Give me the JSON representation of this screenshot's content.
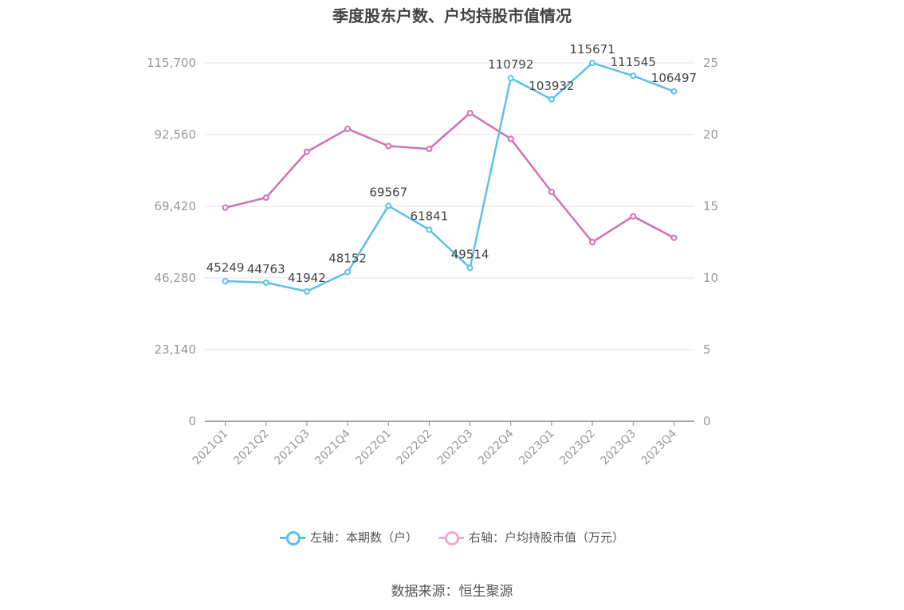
{
  "title": "季度股东户数、户均持股市值情况",
  "source": "数据来源：恒生聚源",
  "legend": {
    "left_label": "左轴：本期数（户）",
    "right_label": "右轴：户均持股市值（万元）"
  },
  "colors": {
    "left_series": "#5bc0eb",
    "right_series": "#d36fb3",
    "right_series_legend": "#f0a8d0",
    "grid": "#e0e3f0",
    "axis": "#888888",
    "tick_text": "#999999",
    "label_text": "#444444"
  },
  "chart_data": {
    "type": "line",
    "categories": [
      "2021Q1",
      "2021Q2",
      "2021Q3",
      "2021Q4",
      "2022Q1",
      "2022Q2",
      "2022Q3",
      "2022Q4",
      "2023Q1",
      "2023Q2",
      "2023Q3",
      "2023Q4"
    ],
    "left_axis": {
      "min": 0,
      "max": 115700,
      "ticks": [
        "0",
        "23,140",
        "46,280",
        "69,420",
        "92,560",
        "115,700"
      ]
    },
    "right_axis": {
      "min": 0,
      "max": 25,
      "ticks": [
        "0",
        "5",
        "10",
        "15",
        "20",
        "25"
      ]
    },
    "grid": true,
    "legend_position": "bottom",
    "series": [
      {
        "name": "左轴：本期数（户）",
        "axis": "left",
        "values": [
          45249,
          44763,
          41942,
          48152,
          69567,
          61841,
          49514,
          110792,
          103932,
          115671,
          111545,
          106497
        ],
        "data_labels": [
          "45249",
          "44763",
          "41942",
          "48152",
          "69567",
          "61841",
          "49514",
          "110792",
          "103932",
          "115671",
          "111545",
          "106497"
        ]
      },
      {
        "name": "右轴：户均持股市值（万元）",
        "axis": "right",
        "values": [
          14.9,
          15.6,
          18.8,
          20.4,
          19.2,
          19.0,
          21.5,
          19.7,
          16.0,
          12.5,
          14.3,
          12.8
        ]
      }
    ]
  }
}
